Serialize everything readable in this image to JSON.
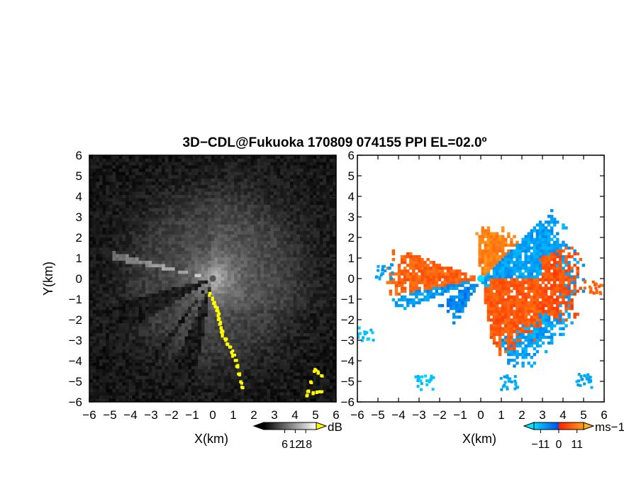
{
  "chart_data": {
    "title": "3D−CDL@Fukuoka 170809 074155 PPI EL=02.0º",
    "panels": [
      {
        "id": "snr",
        "type": "heatmap",
        "xlabel": "X(km)",
        "ylabel": "Y(km)",
        "xlim": [
          -6,
          6
        ],
        "ylim": [
          -6,
          6
        ],
        "xticks": [
          "−6",
          "−5",
          "−4",
          "−3",
          "−2",
          "−1",
          "0",
          "1",
          "2",
          "3",
          "4",
          "5",
          "6"
        ],
        "yticks": [
          "6",
          "5",
          "4",
          "3",
          "2",
          "1",
          "0",
          "−1",
          "−2",
          "−3",
          "−4",
          "−5",
          "−6"
        ],
        "colorbar": {
          "unit": "dB",
          "ticks": [
            {
              "label": "6",
              "value": 6
            },
            {
              "label": "12",
              "value": 12
            },
            {
              "label": "18",
              "value": 18
            }
          ],
          "range": [
            -6,
            24
          ],
          "colors": [
            "#000000",
            "#ffffff"
          ],
          "extend_color": "#ffff00"
        },
        "features": {
          "shadow_sectors_deg": [
            [
              194,
              212
            ],
            [
              232,
              236
            ],
            [
              246,
              260
            ]
          ],
          "bright_beam_deg": 167,
          "saturated_points": [
            [
              -0.2,
              -0.7
            ],
            [
              -0.1,
              -0.9
            ],
            [
              0.0,
              -1.1
            ],
            [
              0.1,
              -1.3
            ],
            [
              0.15,
              -1.5
            ],
            [
              0.2,
              -1.7
            ],
            [
              0.25,
              -1.9
            ],
            [
              0.3,
              -2.1
            ],
            [
              0.35,
              -2.3
            ],
            [
              0.4,
              -2.5
            ],
            [
              0.45,
              -2.7
            ],
            [
              0.55,
              -2.9
            ],
            [
              0.65,
              -3.1
            ],
            [
              0.75,
              -3.3
            ],
            [
              0.85,
              -3.5
            ],
            [
              0.95,
              -3.7
            ],
            [
              1.05,
              -3.9
            ],
            [
              1.1,
              -4.2
            ],
            [
              1.2,
              -4.6
            ],
            [
              1.3,
              -5.0
            ],
            [
              1.35,
              -5.2
            ],
            [
              4.9,
              -4.4
            ],
            [
              5.1,
              -4.5
            ],
            [
              5.2,
              -4.7
            ],
            [
              4.6,
              -5.4
            ],
            [
              4.8,
              -5.5
            ],
            [
              5.0,
              -5.5
            ],
            [
              5.2,
              -5.4
            ],
            [
              4.7,
              -5.0
            ],
            [
              4.5,
              -5.6
            ]
          ]
        }
      },
      {
        "id": "velocity",
        "type": "heatmap",
        "xlabel": "X(km)",
        "xlim": [
          -6,
          6
        ],
        "ylim": [
          -6,
          6
        ],
        "xticks": [
          "−6",
          "−5",
          "−4",
          "−3",
          "−2",
          "−1",
          "0",
          "1",
          "2",
          "3",
          "4",
          "5",
          "6"
        ],
        "colorbar": {
          "unit": "ms−1",
          "ticks": [
            {
              "label": "−11",
              "value": -11
            },
            {
              "label": "0",
              "value": 0
            },
            {
              "label": "11",
              "value": 11
            }
          ],
          "range": [
            -15,
            15
          ],
          "colors": [
            "#00d8ff",
            "#0050e6",
            "#ff2000",
            "#ff9e1a"
          ],
          "extend_low_color": "#00e5ff",
          "extend_high_color": "#ffb020"
        },
        "regions": [
          {
            "sector_deg": [
              160,
              191
            ],
            "r_km": [
              0.3,
              4.2
            ],
            "velocity": 8
          },
          {
            "sector_deg": [
              191,
              202
            ],
            "r_km": [
              0.3,
              4.0
            ],
            "velocity": -8
          },
          {
            "sector_deg": [
              210,
              242
            ],
            "r_km": [
              0.3,
              2.2
            ],
            "velocity": -6
          },
          {
            "sector_deg": [
              44,
              95
            ],
            "r_km": [
              0.2,
              2.4
            ],
            "velocity": 12
          },
          {
            "sector_deg": [
              -72,
              44
            ],
            "r_km": [
              0.2,
              4.4
            ],
            "velocity": -9
          },
          {
            "sector_deg": [
              -80,
              -42
            ],
            "r_km": [
              0.5,
              3.5
            ],
            "velocity": 7
          },
          {
            "sector_deg": [
              -28,
              20
            ],
            "r_km": [
              3.0,
              4.4
            ],
            "velocity": 6
          }
        ],
        "clusters": [
          {
            "center": [
              5.0,
              -4.9
            ],
            "velocity": -10
          },
          {
            "center": [
              -4.7,
              0.4
            ],
            "velocity": -9
          },
          {
            "center": [
              -5.7,
              -2.6
            ],
            "velocity": -13
          },
          {
            "center": [
              -2.8,
              -5.0
            ],
            "velocity": -13
          },
          {
            "center": [
              5.4,
              -0.4
            ],
            "velocity": 8
          },
          {
            "center": [
              1.3,
              -5.0
            ],
            "velocity": -10
          }
        ],
        "origin_marker": [
          0,
          0
        ]
      }
    ]
  }
}
